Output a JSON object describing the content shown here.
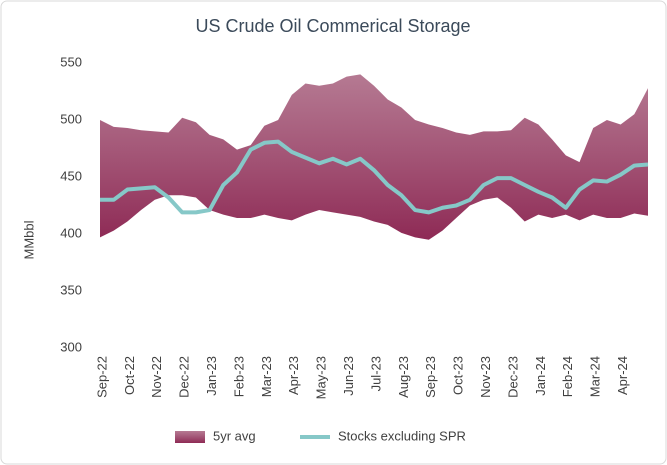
{
  "chart_data": {
    "type": "line",
    "title": "US Crude Oil Commerical Storage",
    "y_label": "MMbbl",
    "categories": [
      "Sep-22",
      null,
      "Oct-22",
      null,
      "Nov-22",
      null,
      "Dec-22",
      null,
      "Jan-23",
      null,
      "Feb-23",
      null,
      "Mar-23",
      null,
      "Apr-23",
      null,
      "May-23",
      null,
      "Jun-23",
      null,
      "Jul-23",
      null,
      "Aug-23",
      null,
      "Sep-23",
      null,
      "Oct-23",
      null,
      "Nov-23",
      null,
      "Dec-23",
      null,
      "Jan-24",
      null,
      "Feb-24",
      null,
      "Mar-24",
      null,
      "Apr-24",
      null,
      null
    ],
    "series": [
      {
        "name": "5yr avg",
        "type": "range",
        "color": "#a8627f",
        "high": [
          500,
          494,
          493,
          491,
          490,
          489,
          502,
          498,
          487,
          483,
          474,
          478,
          495,
          500,
          522,
          532,
          530,
          532,
          538,
          540,
          530,
          518,
          511,
          500,
          496,
          493,
          489,
          487,
          490,
          490,
          491,
          502,
          496,
          483,
          469,
          463,
          493,
          500,
          496,
          505,
          528
        ],
        "low": [
          397,
          403,
          411,
          421,
          430,
          434,
          434,
          432,
          421,
          417,
          414,
          414,
          417,
          414,
          412,
          417,
          421,
          419,
          417,
          415,
          411,
          408,
          401,
          397,
          395,
          403,
          414,
          425,
          430,
          432,
          423,
          411,
          417,
          414,
          417,
          412,
          417,
          414,
          414,
          418,
          416
        ]
      },
      {
        "name": "Stocks excluding SPR",
        "type": "line",
        "color": "#86c8c8",
        "values": [
          430,
          430,
          439,
          440,
          441,
          432,
          419,
          419,
          421,
          443,
          454,
          474,
          480,
          481,
          472,
          467,
          462,
          466,
          461,
          466,
          456,
          443,
          434,
          421,
          419,
          423,
          425,
          430,
          443,
          449,
          449,
          443,
          437,
          432,
          423,
          439,
          447,
          446,
          452,
          460,
          461
        ]
      }
    ],
    "ylim": [
      300,
      550
    ],
    "yticks": [
      300,
      350,
      400,
      450,
      500,
      550
    ],
    "grid": false,
    "legend": "bottom"
  }
}
